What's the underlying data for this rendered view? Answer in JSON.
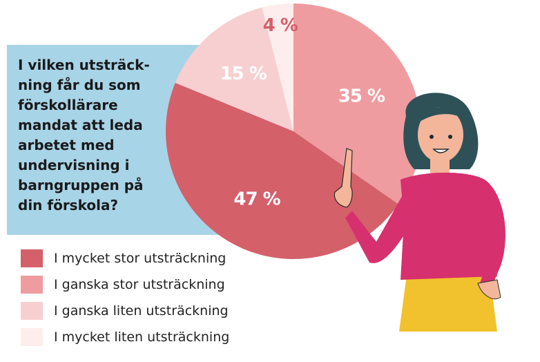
{
  "question": "I vilken utsträck-\nning får du som\nförskollärare\nmandat att leda\narbetet med\n undervisning i\nbarngruppen på\ndin förskola?",
  "chart_data": {
    "type": "pie",
    "title": "I vilken utsträckning får du som förskollärare mandat att leda arbetet med undervisning i barngruppen på din förskola?",
    "categories": [
      "I mycket stor utsträckning",
      "I ganska stor utsträckning",
      "I ganska liten utsträckning",
      "I mycket liten utsträckning"
    ],
    "values": [
      47,
      35,
      15,
      4
    ],
    "value_labels": [
      "47 %",
      "35 %",
      "15 %",
      "4 %"
    ],
    "colors": [
      "#d4606a",
      "#ef9ca0",
      "#f8cfd0",
      "#fdeeed"
    ],
    "legend_position": "bottom-left"
  },
  "legend": [
    {
      "label": "I mycket stor utsträckning",
      "color": "#d4606a"
    },
    {
      "label": "I ganska stor utsträckning",
      "color": "#ef9ca0"
    },
    {
      "label": "I ganska liten utsträckning",
      "color": "#f8cfd0"
    },
    {
      "label": "I mycket liten utsträckning",
      "color": "#fdeeed"
    }
  ],
  "colors": {
    "question_bg": "#a8d4e8",
    "sweater": "#d6306e",
    "skirt": "#f2c12e",
    "hair": "#2e5158",
    "skin": "#f4b69a"
  },
  "illustration": "woman-pointing-illustration"
}
